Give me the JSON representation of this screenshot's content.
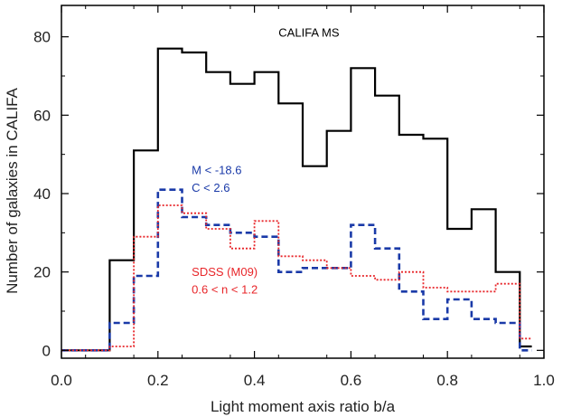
{
  "chart_data": {
    "type": "histogram-step",
    "title": "",
    "xlabel": "Light moment axis ratio b/a",
    "ylabel": "Number of galaxies in CALIFA",
    "xlim": [
      0.0,
      1.0
    ],
    "ylim": [
      -2,
      88
    ],
    "xticks": [
      0.0,
      0.2,
      0.4,
      0.6,
      0.8,
      1.0
    ],
    "xtick_labels": [
      "0.0",
      "0.2",
      "0.4",
      "0.6",
      "0.8",
      "1.0"
    ],
    "yticks": [
      0,
      20,
      40,
      60,
      80
    ],
    "ytick_labels": [
      "0",
      "20",
      "40",
      "60",
      "80"
    ],
    "grid": false,
    "bin_edges": [
      0.0,
      0.05,
      0.1,
      0.15,
      0.2,
      0.25,
      0.3,
      0.35,
      0.4,
      0.45,
      0.5,
      0.55,
      0.6,
      0.65,
      0.7,
      0.75,
      0.8,
      0.85,
      0.9,
      0.95,
      0.975
    ],
    "series": [
      {
        "key": "califa_ms",
        "name": "",
        "style": "solid",
        "color": "#000000",
        "values": [
          0,
          0,
          23,
          51,
          77,
          76,
          71,
          68,
          71,
          63,
          47,
          56,
          72,
          65,
          55,
          54,
          31,
          36,
          20,
          1
        ]
      },
      {
        "key": "califa_cut",
        "name": "",
        "style": "dashed",
        "color": "#1a3aa8",
        "values": [
          0,
          0,
          7,
          19,
          41,
          34,
          32,
          30,
          29,
          20,
          21,
          21,
          32,
          26,
          15,
          8,
          13,
          8,
          7,
          0
        ]
      },
      {
        "key": "sdss_m09",
        "name": "",
        "style": "dotted",
        "color": "#e8262a",
        "values": [
          0,
          0,
          1,
          29,
          37,
          35,
          31,
          26,
          33,
          24,
          23,
          21,
          19,
          18,
          20,
          16,
          15,
          15,
          17,
          3
        ]
      }
    ],
    "annotations": [
      {
        "key": "a1",
        "text": "CALIFA MS",
        "color": "#000000",
        "at": [
          0.45,
          80
        ]
      },
      {
        "key": "a2",
        "text": "M < -18.6",
        "color": "#1a3aa8",
        "at": [
          0.27,
          45
        ]
      },
      {
        "key": "a3",
        "text": "C < 2.6",
        "color": "#1a3aa8",
        "at": [
          0.27,
          40.5
        ]
      },
      {
        "key": "a4",
        "text": "SDSS (M09)",
        "color": "#e8262a",
        "at": [
          0.27,
          19
        ]
      },
      {
        "key": "a5",
        "text": "0.6 < n < 1.2",
        "color": "#e8262a",
        "at": [
          0.27,
          14.5
        ]
      }
    ]
  }
}
